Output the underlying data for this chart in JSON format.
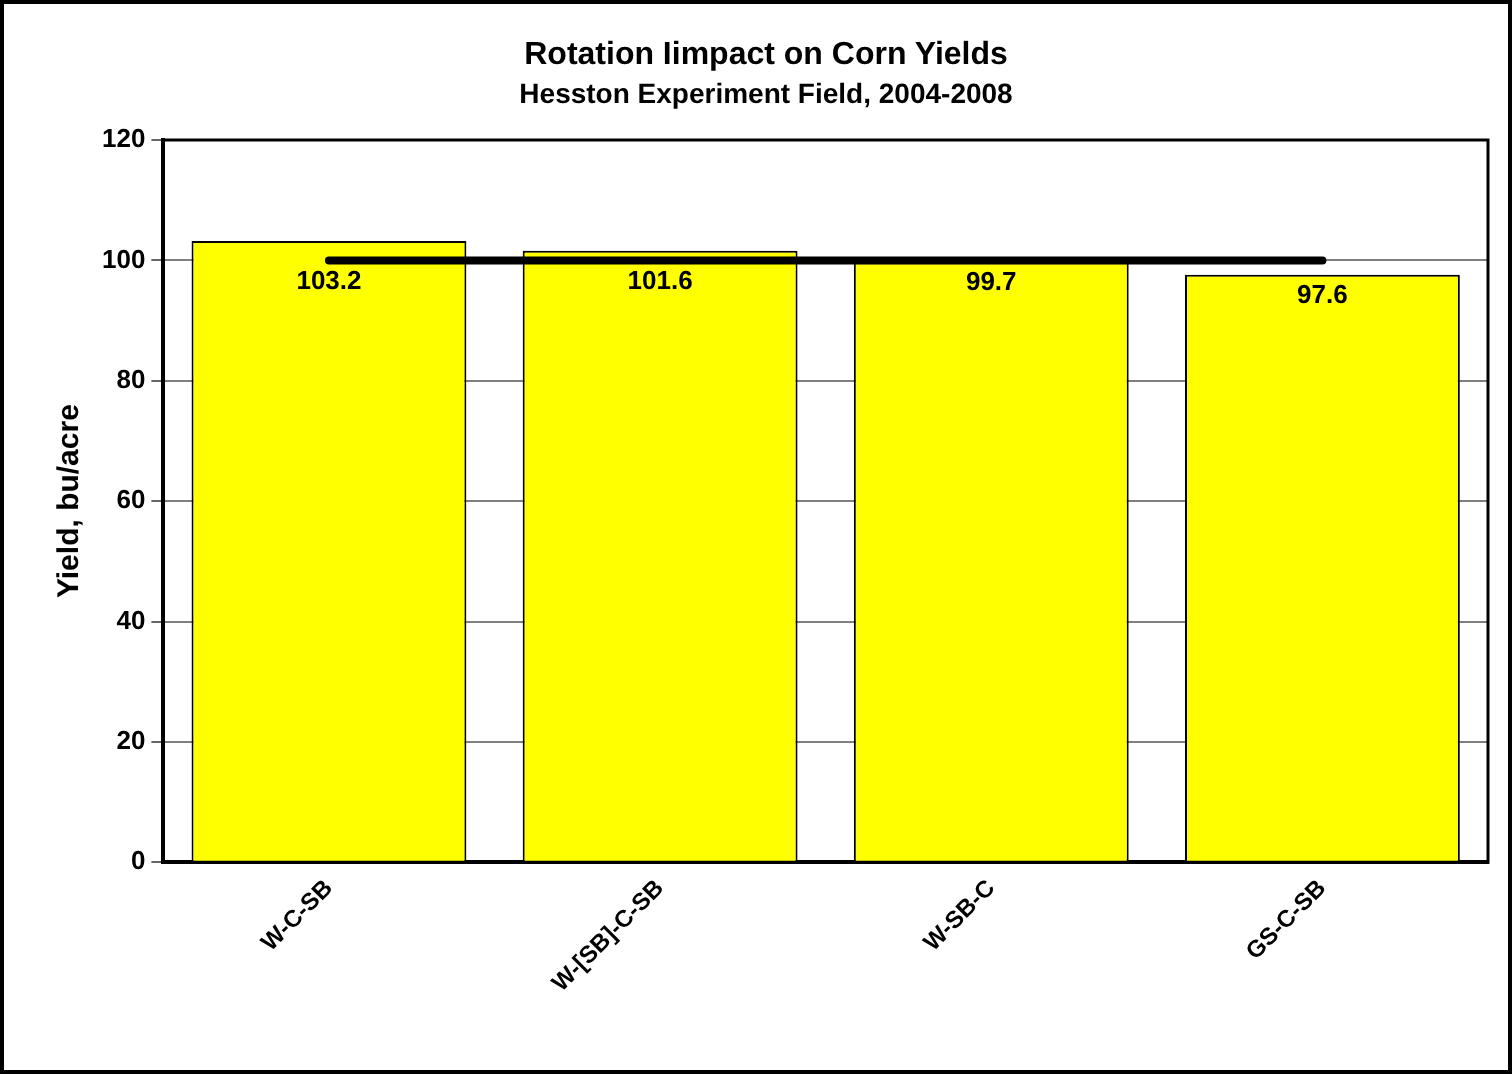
{
  "chart_data": {
    "type": "bar",
    "title": "Rotation Iimpact on Corn Yields",
    "subtitle": "Hesston Experiment Field, 2004-2008",
    "ylabel": "Yield, bu/acre",
    "categories": [
      "W-C-SB",
      "W-[SB]-C-SB",
      "W-SB-C",
      "GS-C-SB"
    ],
    "values": [
      103.2,
      101.6,
      99.7,
      97.6
    ],
    "color": "#ffff00",
    "ylim": [
      0,
      120
    ],
    "yticks": [
      0,
      20,
      40,
      60,
      80,
      100,
      120
    ],
    "grid": "y",
    "data_labels": true,
    "legend": false,
    "ref_lines": [
      {
        "axis": "y",
        "value": 100,
        "color": "#000000"
      }
    ]
  }
}
